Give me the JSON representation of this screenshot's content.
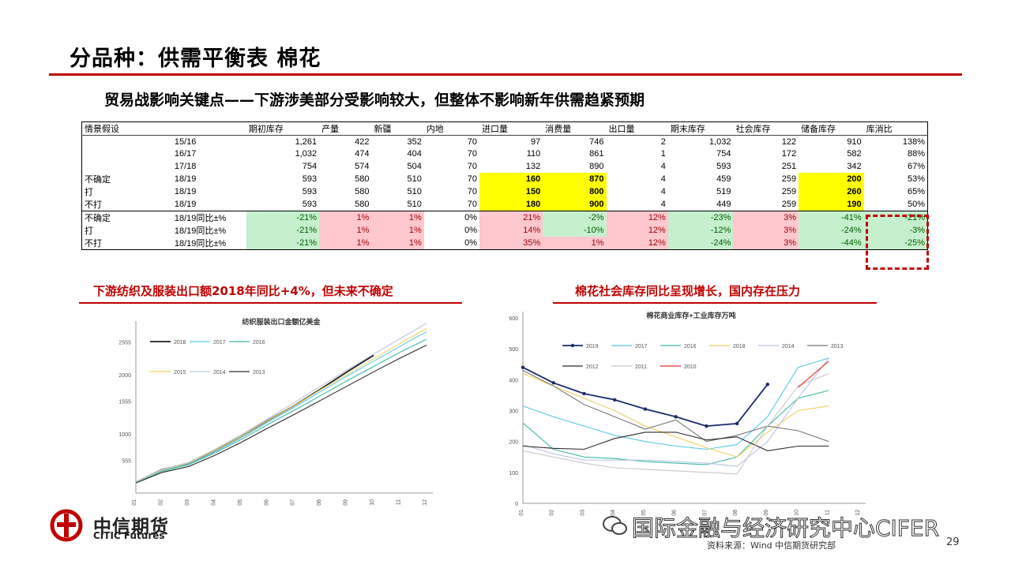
{
  "slide": {
    "title": "分品种：供需平衡表 棉花",
    "subtitle": "贸易战影响关键点——下游涉美部分受影响较大，但整体不影响新年供需趋紧预期",
    "page_number": "29",
    "source": "资料来源：Wind 中信期货研究部",
    "watermark": "国际金融与经济研究中心CIFER",
    "logo_cn": "中信期货",
    "logo_en": "CITIC Futures",
    "colors": {
      "accent": "#c00000",
      "highlight_yellow": "#ffff00",
      "good_green": "#c6efce",
      "bad_red": "#ffc7ce"
    }
  },
  "table": {
    "headers": [
      "情景假设",
      "",
      "期初库存",
      "产量",
      "新疆",
      "内地",
      "进口量",
      "消费量",
      "出口量",
      "期末库存",
      "社会库存",
      "储备库存",
      "库消比"
    ],
    "rows": [
      [
        "",
        "15/16",
        "1,261",
        "422",
        "352",
        "70",
        "97",
        "746",
        "2",
        "1,032",
        "122",
        "910",
        "138%"
      ],
      [
        "",
        "16/17",
        "1,032",
        "474",
        "404",
        "70",
        "110",
        "861",
        "1",
        "754",
        "172",
        "582",
        "88%"
      ],
      [
        "",
        "17/18",
        "754",
        "574",
        "504",
        "70",
        "132",
        "890",
        "4",
        "593",
        "251",
        "342",
        "67%"
      ],
      [
        "不确定",
        "18/19",
        "593",
        "580",
        "510",
        "70",
        "160",
        "870",
        "4",
        "459",
        "259",
        "200",
        "53%"
      ],
      [
        "打",
        "18/19",
        "593",
        "580",
        "510",
        "70",
        "150",
        "800",
        "4",
        "519",
        "259",
        "260",
        "65%"
      ],
      [
        "不打",
        "18/19",
        "593",
        "580",
        "510",
        "70",
        "180",
        "900",
        "4",
        "449",
        "259",
        "190",
        "50%"
      ],
      [
        "不确定",
        "18/19同比±%",
        "-21%",
        "1%",
        "1%",
        "0%",
        "21%",
        "-2%",
        "12%",
        "-23%",
        "3%",
        "-41%",
        "-21%"
      ],
      [
        "打",
        "18/19同比±%",
        "-21%",
        "1%",
        "1%",
        "0%",
        "14%",
        "-10%",
        "12%",
        "-12%",
        "3%",
        "-24%",
        "-3%"
      ],
      [
        "不打",
        "18/19同比±%",
        "-21%",
        "1%",
        "1%",
        "0%",
        "35%",
        "1%",
        "12%",
        "-24%",
        "3%",
        "-44%",
        "-25%"
      ]
    ],
    "cell_colors": [
      [
        "",
        "",
        "",
        "",
        "",
        "",
        "",
        "",
        "",
        "",
        "",
        "",
        ""
      ],
      [
        "",
        "",
        "",
        "",
        "",
        "",
        "",
        "",
        "",
        "",
        "",
        "",
        ""
      ],
      [
        "",
        "",
        "",
        "",
        "",
        "",
        "",
        "",
        "",
        "",
        "",
        "",
        ""
      ],
      [
        "",
        "",
        "",
        "",
        "",
        "",
        "y",
        "y",
        "",
        "",
        "",
        "y",
        ""
      ],
      [
        "",
        "",
        "",
        "",
        "",
        "",
        "y",
        "y",
        "",
        "",
        "",
        "y",
        ""
      ],
      [
        "",
        "",
        "",
        "",
        "",
        "",
        "y",
        "y",
        "",
        "",
        "",
        "y",
        ""
      ],
      [
        "",
        "",
        "g",
        "r",
        "r",
        "",
        "r",
        "g",
        "r",
        "g",
        "r",
        "g",
        "g"
      ],
      [
        "",
        "",
        "g",
        "r",
        "r",
        "",
        "r",
        "g",
        "r",
        "g",
        "r",
        "g",
        "g"
      ],
      [
        "",
        "",
        "g",
        "r",
        "r",
        "",
        "r",
        "r",
        "r",
        "g",
        "r",
        "g",
        "g"
      ]
    ]
  },
  "chart_data": [
    {
      "type": "line",
      "heading": "下游纺织及服装出口额2018年同比+4%，但未来不确定",
      "title": "纺织服装出口金额亿美金",
      "x": [
        "01",
        "02",
        "03",
        "04",
        "05",
        "06",
        "07",
        "08",
        "09",
        "10",
        "11",
        "12"
      ],
      "ylim": [
        0,
        2800
      ],
      "yticks": [
        "555",
        "1000",
        "1555",
        "2000",
        "2555"
      ],
      "series": [
        {
          "name": "2018",
          "color": "#1f1f1f",
          "values": [
            185,
            400,
            500,
            720,
            960,
            1230,
            1480,
            1760,
            2050,
            2330,
            null,
            null
          ]
        },
        {
          "name": "2017",
          "color": "#5bc8e8",
          "values": [
            180,
            380,
            490,
            700,
            940,
            1200,
            1450,
            1720,
            1980,
            2230,
            2480,
            2730
          ]
        },
        {
          "name": "2016",
          "color": "#3fb9a6",
          "values": [
            175,
            370,
            480,
            680,
            910,
            1160,
            1400,
            1650,
            1900,
            2140,
            2380,
            2600
          ]
        },
        {
          "name": "2015",
          "color": "#f0d060",
          "values": [
            190,
            390,
            510,
            720,
            960,
            1230,
            1480,
            1750,
            2010,
            2270,
            2530,
            2780
          ]
        },
        {
          "name": "2014",
          "color": "#b9c5e0",
          "values": [
            195,
            400,
            520,
            740,
            990,
            1260,
            1530,
            1810,
            2080,
            2350,
            2610,
            2870
          ]
        },
        {
          "name": "2013",
          "color": "#2a2a2a",
          "values": [
            170,
            350,
            450,
            640,
            860,
            1100,
            1330,
            1570,
            1810,
            2050,
            2280,
            2500
          ]
        }
      ]
    },
    {
      "type": "line",
      "heading": "棉花社会库存同比呈现增长，国内存在压力",
      "title": "棉花商业库存+工业库存万吨",
      "x": [
        "01",
        "02",
        "03",
        "04",
        "05",
        "06",
        "07",
        "08",
        "09",
        "10",
        "11",
        "12"
      ],
      "ylim": [
        0,
        600
      ],
      "yticks": [
        "0",
        "100",
        "200",
        "300",
        "400",
        "500",
        "600"
      ],
      "series": [
        {
          "name": "2019",
          "color": "#1a2a6c",
          "values": [
            440,
            390,
            355,
            335,
            305,
            280,
            250,
            258,
            385,
            null,
            null,
            null
          ]
        },
        {
          "name": "2017",
          "color": "#5bc8e8",
          "values": [
            315,
            280,
            250,
            220,
            200,
            185,
            175,
            190,
            280,
            440,
            470,
            null
          ]
        },
        {
          "name": "2016",
          "color": "#3fb9a6",
          "values": [
            260,
            175,
            150,
            145,
            135,
            130,
            125,
            150,
            250,
            340,
            365,
            null
          ]
        },
        {
          "name": "2018",
          "color": "#f0d060",
          "values": [
            420,
            380,
            340,
            300,
            250,
            215,
            180,
            150,
            230,
            300,
            315,
            null
          ]
        },
        {
          "name": "2014",
          "color": "#b9c5e0",
          "values": [
            190,
            160,
            140,
            140,
            140,
            135,
            130,
            120,
            200,
            340,
            470,
            null
          ]
        },
        {
          "name": "2013",
          "color": "#777777",
          "values": [
            430,
            380,
            320,
            280,
            240,
            270,
            200,
            220,
            250,
            235,
            200,
            null
          ]
        },
        {
          "name": "2012",
          "color": "#2a2a2a",
          "values": [
            185,
            178,
            175,
            210,
            230,
            230,
            205,
            215,
            170,
            185,
            185,
            null
          ]
        },
        {
          "name": "2011",
          "color": "#c8c8c8",
          "values": [
            170,
            150,
            130,
            115,
            110,
            105,
            100,
            95,
            250,
            380,
            420,
            null
          ]
        },
        {
          "name": "2010",
          "color": "#e03030",
          "values": [
            null,
            null,
            null,
            null,
            null,
            null,
            null,
            null,
            null,
            375,
            460,
            null
          ]
        }
      ]
    }
  ]
}
